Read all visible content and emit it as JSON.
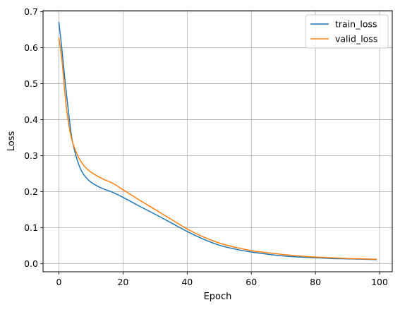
{
  "chart_data": {
    "type": "line",
    "title": "",
    "xlabel": "Epoch",
    "ylabel": "Loss",
    "xlim": [
      -4.95,
      103.95
    ],
    "ylim": [
      -0.0229,
      0.7029
    ],
    "x_ticks": [
      0,
      20,
      40,
      60,
      80,
      100
    ],
    "x_tick_labels": [
      "0",
      "20",
      "40",
      "60",
      "80",
      "100"
    ],
    "y_ticks": [
      0.0,
      0.1,
      0.2,
      0.3,
      0.4,
      0.5,
      0.6,
      0.7
    ],
    "y_tick_labels": [
      "0.0",
      "0.1",
      "0.2",
      "0.3",
      "0.4",
      "0.5",
      "0.6",
      "0.7"
    ],
    "grid": true,
    "legend_position": "top-right",
    "series": [
      {
        "name": "train_loss",
        "color": "#1f77b4",
        "x": [
          0,
          1,
          2,
          3,
          4,
          5,
          6,
          7,
          8,
          9,
          10,
          12,
          14,
          17,
          20,
          25,
          30,
          35,
          40,
          45,
          50,
          55,
          60,
          65,
          70,
          75,
          80,
          85,
          90,
          95,
          99
        ],
        "y": [
          0.67,
          0.59,
          0.5,
          0.42,
          0.35,
          0.31,
          0.28,
          0.258,
          0.244,
          0.234,
          0.226,
          0.215,
          0.207,
          0.197,
          0.184,
          0.16,
          0.137,
          0.113,
          0.089,
          0.068,
          0.051,
          0.04,
          0.032,
          0.026,
          0.021,
          0.018,
          0.016,
          0.014,
          0.013,
          0.012,
          0.011
        ]
      },
      {
        "name": "valid_loss",
        "color": "#ff7f0e",
        "x": [
          0,
          1,
          2,
          3,
          4,
          5,
          6,
          7,
          8,
          9,
          10,
          12,
          14,
          17,
          20,
          25,
          30,
          35,
          40,
          45,
          50,
          55,
          60,
          65,
          70,
          75,
          80,
          85,
          90,
          95,
          99
        ],
        "y": [
          0.627,
          0.56,
          0.46,
          0.39,
          0.345,
          0.318,
          0.297,
          0.282,
          0.27,
          0.261,
          0.254,
          0.243,
          0.234,
          0.222,
          0.205,
          0.177,
          0.15,
          0.123,
          0.096,
          0.074,
          0.057,
          0.045,
          0.036,
          0.03,
          0.025,
          0.021,
          0.018,
          0.016,
          0.014,
          0.013,
          0.012
        ]
      }
    ]
  }
}
